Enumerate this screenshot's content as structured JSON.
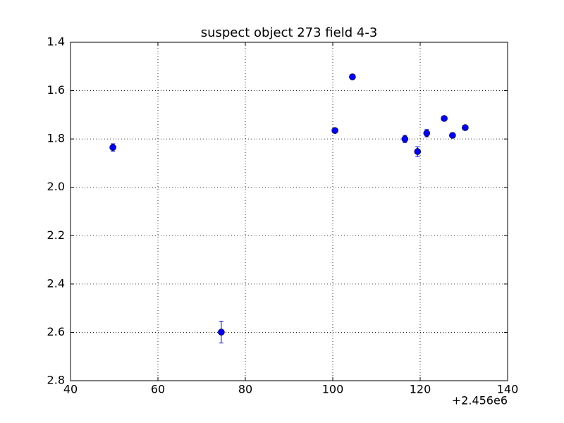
{
  "chart_data": {
    "type": "scatter",
    "title": "suspect object 273 field 4-3",
    "x": [
      49.7,
      74.5,
      100.5,
      104.5,
      116.5,
      119.4,
      121.5,
      125.5,
      127.4,
      130.3
    ],
    "values": [
      1.835,
      2.599,
      1.765,
      1.543,
      1.8,
      1.852,
      1.776,
      1.715,
      1.785,
      1.753
    ],
    "errors": [
      0.015,
      0.045,
      0.01,
      0.01,
      0.015,
      0.02,
      0.015,
      0.008,
      0.01,
      0.01
    ],
    "color": "#0000ff",
    "xlim": [
      40,
      140
    ],
    "xticks": [
      40,
      60,
      80,
      100,
      120,
      140
    ],
    "x_offset_label": "+2.456e6",
    "ylim": [
      1.4,
      2.8
    ],
    "y_inverted": true,
    "yticks": [
      1.4,
      1.6,
      1.8,
      {
        "value": 2,
        "label": "2.0"
      },
      2.2,
      2.4,
      2.6,
      2.8
    ],
    "grid": true
  }
}
